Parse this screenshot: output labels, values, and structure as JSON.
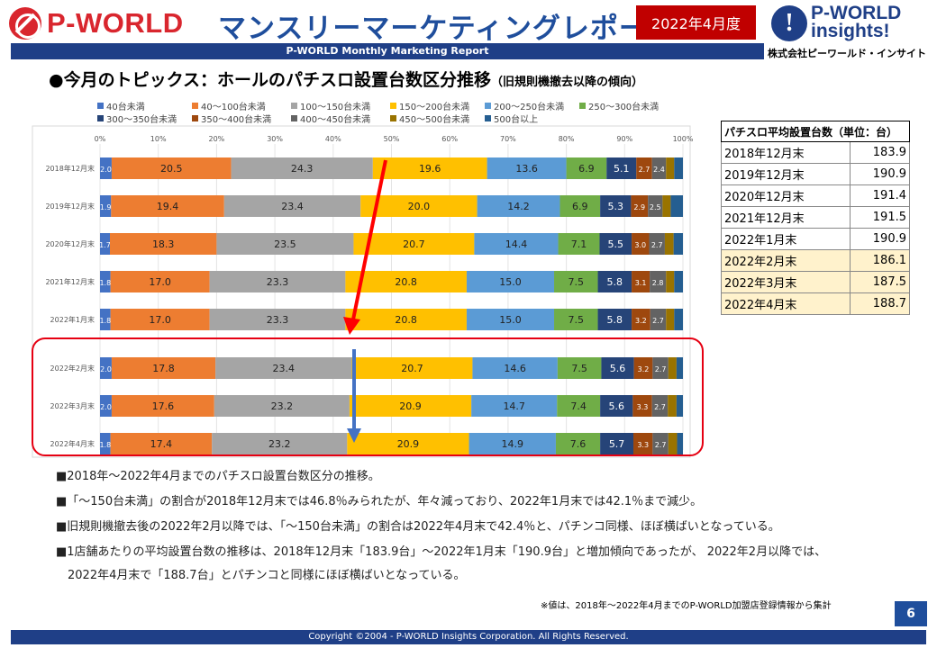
{
  "header": {
    "brand_left": "P-WORLD",
    "title": "マンスリーマーケティングレポート",
    "date": "2022年4月度",
    "brand_right_1": "P-WORLD",
    "brand_right_2": "insights!",
    "brand_right_mark": "!",
    "corp_name": "株式会社ピーワールド・インサイト",
    "subtitle": "P-WORLD Monthly Marketing Report"
  },
  "topic": {
    "main": "●今月のトピックス：ホールのパチスロ設置台数区分推移",
    "sub": "（旧規則機撤去以降の傾向）"
  },
  "chart_data": {
    "type": "bar",
    "orientation": "horizontal-stacked-100",
    "categories": [
      "2018年12月末",
      "2019年12月末",
      "2020年12月末",
      "2021年12月末",
      "2022年1月末",
      "2022年2月末",
      "2022年3月末",
      "2022年4月末"
    ],
    "x_ticks": [
      "0%",
      "10%",
      "20%",
      "30%",
      "40%",
      "50%",
      "60%",
      "70%",
      "80%",
      "90%",
      "100%"
    ],
    "xlim": [
      0,
      100
    ],
    "legend_placement": "top",
    "series": [
      {
        "name": "40台未満",
        "color": "#4472c4",
        "values": [
          2.0,
          1.9,
          1.7,
          1.8,
          1.8,
          2.0,
          2.0,
          1.8
        ]
      },
      {
        "name": "40〜100台未満",
        "color": "#ed7d31",
        "values": [
          20.5,
          19.4,
          18.3,
          17.0,
          17.0,
          17.8,
          17.6,
          17.4
        ]
      },
      {
        "name": "100〜150台未満",
        "color": "#a5a5a5",
        "values": [
          24.3,
          23.4,
          23.5,
          23.3,
          23.3,
          23.4,
          23.2,
          23.2
        ]
      },
      {
        "name": "150〜200台未満",
        "color": "#ffc000",
        "values": [
          19.6,
          20.0,
          20.7,
          20.8,
          20.8,
          20.7,
          20.9,
          20.9
        ]
      },
      {
        "name": "200〜250台未満",
        "color": "#5b9bd5",
        "values": [
          13.6,
          14.2,
          14.4,
          15.0,
          15.0,
          14.6,
          14.7,
          14.9
        ]
      },
      {
        "name": "250〜300台未満",
        "color": "#70ad47",
        "values": [
          6.9,
          6.9,
          7.1,
          7.5,
          7.5,
          7.5,
          7.4,
          7.6
        ]
      },
      {
        "name": "300〜350台未満",
        "color": "#264478",
        "values": [
          5.1,
          5.3,
          5.5,
          5.8,
          5.8,
          5.6,
          5.6,
          5.7
        ]
      },
      {
        "name": "350〜400台未満",
        "color": "#9e480e",
        "values": [
          2.7,
          2.9,
          3.0,
          3.1,
          3.2,
          3.2,
          3.3,
          3.3
        ]
      },
      {
        "name": "400〜450台未満",
        "color": "#636363",
        "values": [
          2.4,
          2.5,
          2.7,
          2.8,
          2.7,
          2.7,
          2.7,
          2.7
        ]
      },
      {
        "name": "450〜500台未満",
        "color": "#997300",
        "values": [
          1.4,
          1.4,
          1.5,
          1.4,
          1.4,
          1.4,
          1.5,
          1.5
        ]
      },
      {
        "name": "500台以上",
        "color": "#255e91",
        "values": [
          1.5,
          2.1,
          1.6,
          1.5,
          1.5,
          1.1,
          1.1,
          1.0
        ]
      }
    ],
    "label_min": 2.4
  },
  "table": {
    "header": "パチスロ平均設置台数（単位：台）",
    "rows": [
      {
        "label": "2018年12月末",
        "value": "183.9",
        "highlight": false
      },
      {
        "label": "2019年12月末",
        "value": "190.9",
        "highlight": false
      },
      {
        "label": "2020年12月末",
        "value": "191.4",
        "highlight": false
      },
      {
        "label": "2021年12月末",
        "value": "191.5",
        "highlight": false
      },
      {
        "label": "2022年1月末",
        "value": "190.9",
        "highlight": false
      },
      {
        "label": "2022年2月末",
        "value": "186.1",
        "highlight": true
      },
      {
        "label": "2022年3月末",
        "value": "187.5",
        "highlight": true
      },
      {
        "label": "2022年4月末",
        "value": "188.7",
        "highlight": true
      }
    ]
  },
  "notes": [
    "■2018年～2022年4月までのパチスロ設置台数区分の推移。",
    "■「～150台未満」の割合が2018年12月末では46.8％みられたが、年々減っており、2022年1月末では42.1％まで減少。",
    "■旧規則機撤去後の2022年2月以降では、「～150台未満」の割合は2022年4月末で42.4％と、パチンコ同様、ほぼ横ばいとなっている。",
    "■1店舗あたりの平均設置台数の推移は、2018年12月末「183.9台」～2022年1月末「190.9台」と増加傾向であったが、 2022年2月以降では、",
    "　2022年4月末で「188.7台」とパチンコと同様にほぼ横ばいとなっている。"
  ],
  "source": "※値は、2018年～2022年4月までのP-WORLD加盟店登録情報から集計",
  "page_number": "6",
  "footer": "Copyright ©2004 - P-WORLD Insights Corporation. All Rights Reserved."
}
